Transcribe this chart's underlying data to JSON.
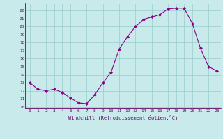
{
  "x": [
    0,
    1,
    2,
    3,
    4,
    5,
    6,
    7,
    8,
    9,
    10,
    11,
    12,
    13,
    14,
    15,
    16,
    17,
    18,
    19,
    20,
    21,
    22,
    23
  ],
  "y": [
    13.0,
    12.2,
    12.0,
    12.2,
    11.8,
    11.1,
    10.5,
    10.4,
    11.5,
    13.0,
    14.3,
    17.2,
    18.7,
    20.0,
    20.9,
    21.2,
    21.5,
    22.2,
    22.3,
    22.3,
    20.4,
    17.3,
    15.0,
    14.5
  ],
  "xlabel": "Windchill (Refroidissement éolien,°C)",
  "ylim": [
    9.8,
    22.8
  ],
  "xlim": [
    -0.5,
    23.5
  ],
  "yticks": [
    10,
    11,
    12,
    13,
    14,
    15,
    16,
    17,
    18,
    19,
    20,
    21,
    22
  ],
  "xticks": [
    0,
    1,
    2,
    3,
    4,
    5,
    6,
    7,
    8,
    9,
    10,
    11,
    12,
    13,
    14,
    15,
    16,
    17,
    18,
    19,
    20,
    21,
    22,
    23
  ],
  "line_color": "#880088",
  "marker_color": "#880088",
  "bg_color": "#c8eaea",
  "grid_color": "#99cccc",
  "text_color": "#660066",
  "font_family": "monospace"
}
